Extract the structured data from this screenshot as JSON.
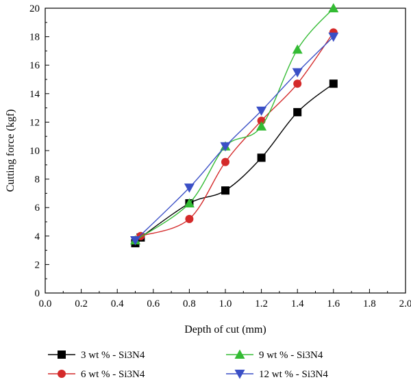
{
  "chart_data": {
    "type": "line",
    "xlabel": "Depth of cut (mm)",
    "ylabel": "Cutting force (kgf)",
    "xlim": [
      0.0,
      2.0
    ],
    "ylim": [
      0,
      20
    ],
    "x_ticks": [
      "0.0",
      "0.2",
      "0.4",
      "0.6",
      "0.8",
      "1.0",
      "1.2",
      "1.4",
      "1.6",
      "1.8",
      "2.0"
    ],
    "y_ticks": [
      "0",
      "2",
      "4",
      "6",
      "8",
      "10",
      "12",
      "14",
      "16",
      "18",
      "20"
    ],
    "grid": false,
    "legend_position": "bottom",
    "series": [
      {
        "name": "3 wt % - Si3N4",
        "color": "#000000",
        "marker": "square",
        "x": [
          0.5,
          0.53,
          0.8,
          1.0,
          1.2,
          1.4,
          1.6
        ],
        "y": [
          3.5,
          3.9,
          6.3,
          7.2,
          9.5,
          12.7,
          14.7
        ]
      },
      {
        "name": "6 wt % - Si3N4",
        "color": "#d42a2a",
        "marker": "circle",
        "x": [
          0.53,
          0.8,
          1.0,
          1.2,
          1.4,
          1.6
        ],
        "y": [
          4.0,
          5.2,
          9.2,
          12.1,
          14.7,
          18.3
        ]
      },
      {
        "name": "9 wt % - Si3N4",
        "color": "#33bb33",
        "marker": "triangle-up",
        "x": [
          0.5,
          0.8,
          1.0,
          1.2,
          1.4,
          1.6
        ],
        "y": [
          3.7,
          6.3,
          10.3,
          11.7,
          17.1,
          20.0
        ]
      },
      {
        "name": "12 wt % - Si3N4",
        "color": "#3a4fc6",
        "marker": "triangle-down",
        "x": [
          0.5,
          0.8,
          1.0,
          1.2,
          1.4,
          1.6
        ],
        "y": [
          3.7,
          7.4,
          10.3,
          12.8,
          15.5,
          18.0
        ]
      }
    ]
  }
}
